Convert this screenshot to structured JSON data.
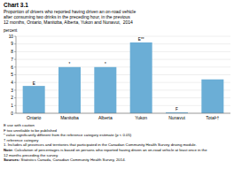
{
  "chart_data": {
    "type": "bar",
    "title": "Chart 3.1",
    "subtitle": [
      "Proportion of drivers who reported having driven an on-road vehicle",
      "after consuming two drinks in the preceding hour, in the previous",
      "12 months, Ontario, Manitoba, Alberta, Yukon and Nunavut,  2014"
    ],
    "ylabel": "percent",
    "categories": [
      "Ontario",
      "Manitoba",
      "Alberta",
      "Yukon",
      "Nunavut",
      "Total¹†"
    ],
    "values": [
      3.55,
      6.0,
      6.0,
      9.2,
      0.12,
      4.4
    ],
    "color": "#6baed6",
    "ylim": [
      0,
      10
    ],
    "yticks": [
      0,
      1,
      2,
      3,
      4,
      5,
      6,
      7,
      8,
      9,
      10
    ],
    "grid": true,
    "annotations": [
      "E",
      "*",
      "*",
      "E**",
      "F",
      null
    ],
    "footnotes": [
      "E use with caution",
      "F too unreliable to be published",
      "* value significantly different from the reference category estimate (p < 0.05)",
      "† reference category",
      "1. Includes all provinces and territories that participated in the Canadian Community Health Survey driving module.",
      "Note: Calculation of percentages is based on persons who reported having driven an on-road vehicle at least once in the",
      "12 months preceding the survey.",
      "Sources: Statistics Canada, Canadian Community Health Survey, 2014."
    ]
  }
}
